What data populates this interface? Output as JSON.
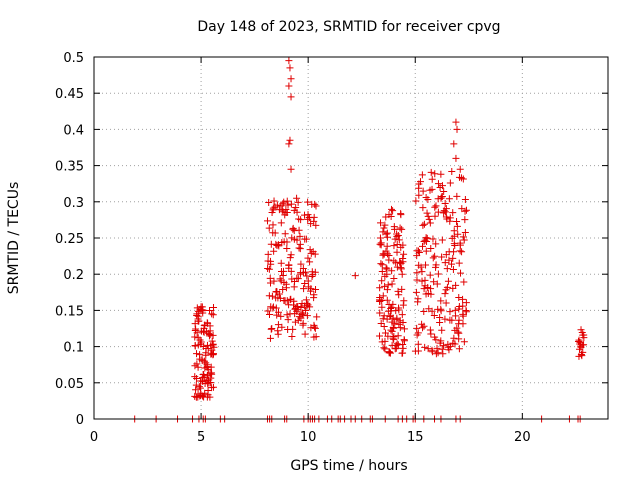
{
  "chart_data": {
    "type": "scatter",
    "title": "Day 148 of 2023, SRMTID for receiver cpvg",
    "xlabel": "GPS time / hours",
    "ylabel": "SRMTID / TECUs",
    "xlim": [
      0,
      24
    ],
    "ylim": [
      0,
      0.5
    ],
    "x_ticks": [
      0,
      5,
      10,
      15,
      20
    ],
    "y_ticks": [
      0,
      0.05,
      0.1,
      0.15,
      0.2,
      0.25,
      0.3,
      0.35,
      0.4,
      0.45,
      0.5
    ],
    "y_tick_labels": [
      "0",
      "0.05",
      "0.1",
      "0.15",
      "0.2",
      "0.25",
      "0.3",
      "0.35",
      "0.4",
      "0.45",
      "0.5"
    ],
    "grid": true,
    "marker": "+",
    "color": "#e00000",
    "clusters": [
      {
        "x_start": 4.7,
        "x_end": 5.6,
        "y_min": 0.03,
        "y_max": 0.155,
        "n": 120
      },
      {
        "x_start": 8.1,
        "x_end": 10.4,
        "y_min": 0.11,
        "y_max": 0.31,
        "n": 200
      },
      {
        "x_start": 13.3,
        "x_end": 14.5,
        "y_min": 0.09,
        "y_max": 0.29,
        "n": 140
      },
      {
        "x_start": 15.0,
        "x_end": 17.4,
        "y_min": 0.09,
        "y_max": 0.35,
        "n": 200
      },
      {
        "x_start": 22.6,
        "x_end": 22.9,
        "y_min": 0.085,
        "y_max": 0.13,
        "n": 18
      }
    ],
    "points": [
      {
        "x": 9.1,
        "y": 0.495
      },
      {
        "x": 9.15,
        "y": 0.485
      },
      {
        "x": 9.2,
        "y": 0.47
      },
      {
        "x": 9.1,
        "y": 0.46
      },
      {
        "x": 9.2,
        "y": 0.445
      },
      {
        "x": 9.15,
        "y": 0.385
      },
      {
        "x": 9.1,
        "y": 0.38
      },
      {
        "x": 9.2,
        "y": 0.345
      },
      {
        "x": 16.9,
        "y": 0.41
      },
      {
        "x": 16.95,
        "y": 0.4
      },
      {
        "x": 16.8,
        "y": 0.38
      },
      {
        "x": 16.9,
        "y": 0.36
      },
      {
        "x": 17.1,
        "y": 0.345
      },
      {
        "x": 12.2,
        "y": 0.198
      },
      {
        "x": 17.0,
        "y": 0.12
      },
      {
        "x": 5.0,
        "y": 0.155
      },
      {
        "x": 5.05,
        "y": 0.15
      }
    ],
    "zero_points_x": [
      1.9,
      2.9,
      3.9,
      4.6,
      4.9,
      5.1,
      5.2,
      5.9,
      6.1,
      8.1,
      8.2,
      8.3,
      8.9,
      9.0,
      9.8,
      10.0,
      10.1,
      10.2,
      10.3,
      10.5,
      10.9,
      11.1,
      11.4,
      11.5,
      11.7,
      12.0,
      12.2,
      12.5,
      12.9,
      13.0,
      13.6,
      14.2,
      14.4,
      14.6,
      14.9,
      15.0,
      15.4,
      15.9,
      16.2,
      16.9,
      17.1,
      20.9,
      22.2,
      22.6,
      22.7
    ]
  }
}
